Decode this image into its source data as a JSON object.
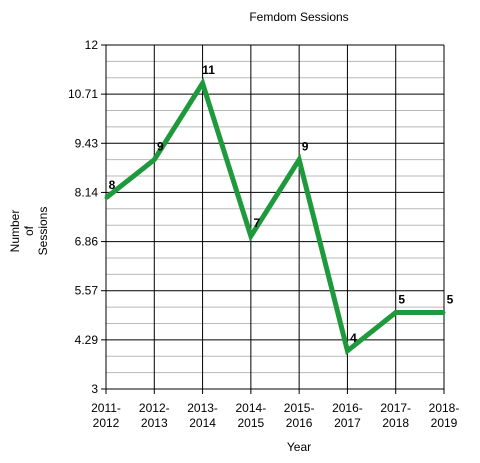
{
  "chart_data": {
    "type": "line",
    "title": "Femdom Sessions",
    "xlabel": "Year",
    "ylabel": [
      "Number",
      "of",
      "Sessions"
    ],
    "categories": [
      [
        "2011-",
        "2012"
      ],
      [
        "2012-",
        "2013"
      ],
      [
        "2013-",
        "2014"
      ],
      [
        "2014-",
        "2015"
      ],
      [
        "2015-",
        "2016"
      ],
      [
        "2016-",
        "2017"
      ],
      [
        "2017-",
        "2018"
      ],
      [
        "2018-",
        "2019"
      ]
    ],
    "series": [
      {
        "values": [
          8,
          9,
          11,
          7,
          9,
          4,
          5,
          5
        ],
        "color": "#1e9a3c"
      }
    ],
    "ylim": [
      3,
      12
    ],
    "yticks": [
      "3",
      "4.29",
      "5.57",
      "6.86",
      "8.14",
      "9.43",
      "10.71",
      "12"
    ],
    "grid": true,
    "minor_grid_color": "#b8b8b8",
    "major_grid_color": "#000000"
  }
}
